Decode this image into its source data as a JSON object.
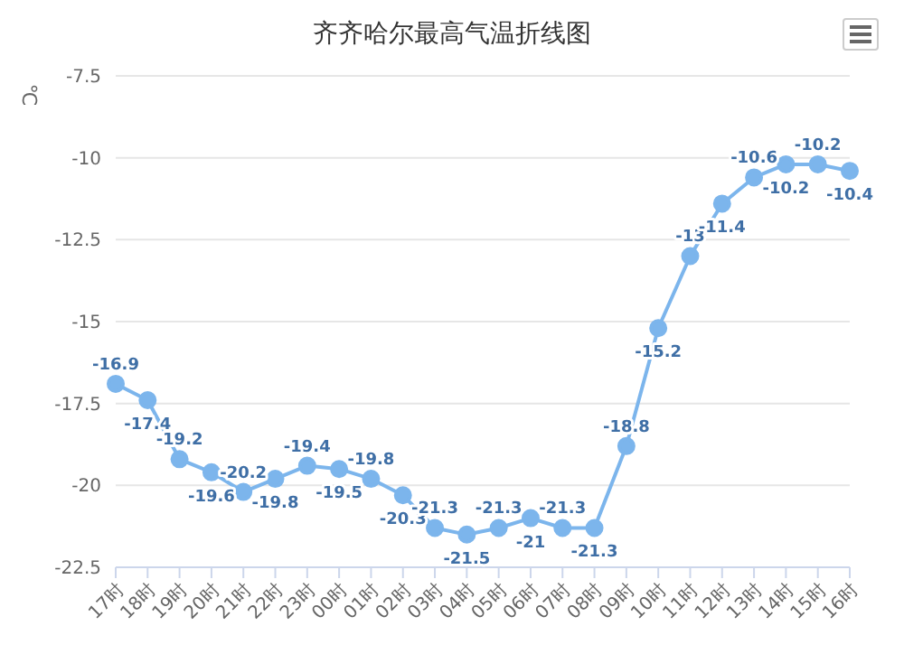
{
  "chart_data": {
    "type": "line",
    "title": "齐齐哈尔最高气温折线图",
    "ylabel": "℃",
    "categories": [
      "17时",
      "18时",
      "19时",
      "20时",
      "21时",
      "22时",
      "23时",
      "00时",
      "01时",
      "02时",
      "03时",
      "04时",
      "05时",
      "06时",
      "07时",
      "08时",
      "09时",
      "10时",
      "11时",
      "12时",
      "13时",
      "14时",
      "15时",
      "16时"
    ],
    "series": [
      {
        "color": "#7cb5ec",
        "values": [
          -16.9,
          -17.4,
          -19.2,
          -19.6,
          -20.2,
          -19.8,
          -19.4,
          -19.5,
          -19.8,
          -20.3,
          -21.3,
          -21.5,
          -21.3,
          -21,
          -21.3,
          -21.3,
          -18.8,
          -15.2,
          -13,
          -11.4,
          -10.6,
          -10.2,
          -10.2,
          -10.4
        ]
      }
    ],
    "ylim": [
      -22.5,
      -7.5
    ],
    "yticks": [
      -22.5,
      -20,
      -17.5,
      -15,
      -12.5,
      -10,
      -7.5
    ],
    "grid": "y",
    "marker": "circle",
    "line_style": "solid",
    "data_labels": true,
    "legend": false
  }
}
